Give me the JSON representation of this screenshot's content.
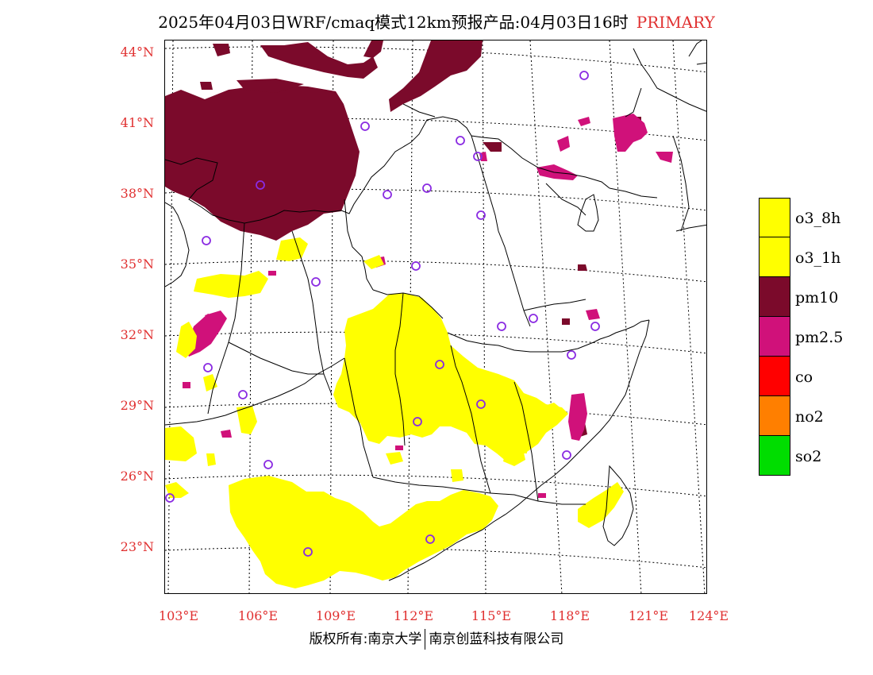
{
  "title": {
    "main": "2025年04月03日WRF/cmaq模式12km预报产品:04月03日16时",
    "tag": "PRIMARY"
  },
  "axes": {
    "latitudes": [
      "44°N",
      "41°N",
      "38°N",
      "35°N",
      "32°N",
      "29°N",
      "26°N",
      "23°N"
    ],
    "longitudes": [
      "103°E",
      "106°E",
      "109°E",
      "112°E",
      "115°E",
      "118°E",
      "121°E",
      "124°E"
    ]
  },
  "legend": {
    "items": [
      {
        "label": "o3_8h",
        "color": "#ffff00"
      },
      {
        "label": "o3_1h",
        "color": "#ffff00"
      },
      {
        "label": "pm10",
        "color": "#7b0a2b"
      },
      {
        "label": "pm2.5",
        "color": "#d0117a"
      },
      {
        "label": "co",
        "color": "#ff0000"
      },
      {
        "label": "no2",
        "color": "#ff7f00"
      },
      {
        "label": "so2",
        "color": "#00dd00"
      }
    ]
  },
  "colors": {
    "o3": "#ffff00",
    "pm10": "#7b0a2b",
    "pm25": "#d0117a",
    "station_marker": "#8a2be2",
    "axis_label": "#e03030"
  },
  "footer": {
    "left": "版权所有:南京大学",
    "right": "南京创蓝科技有限公司"
  }
}
